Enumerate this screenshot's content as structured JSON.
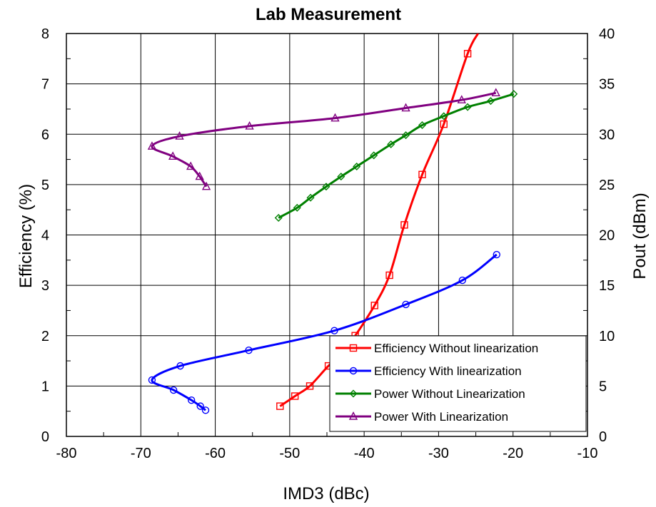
{
  "chart_data": {
    "type": "line",
    "title": "Lab Measurement",
    "xlabel": "IMD3 (dBc)",
    "ylabel": "Efficiency (%)",
    "y2label": "Pout (dBm)",
    "xlim": [
      -80,
      -10
    ],
    "ylim": [
      0,
      8
    ],
    "y2lim": [
      0,
      40
    ],
    "x_ticks": [
      -80,
      -70,
      -60,
      -50,
      -40,
      -30,
      -20,
      -10
    ],
    "y_ticks": [
      0,
      1,
      2,
      3,
      4,
      5,
      6,
      7,
      8
    ],
    "y2_ticks": [
      0,
      5,
      10,
      15,
      20,
      25,
      30,
      35,
      40
    ],
    "grid": true,
    "legend_position": "bottom-right",
    "series": [
      {
        "name": "Efficiency Without linearization",
        "axis": "left",
        "color": "#ff0000",
        "marker": "square",
        "x": [
          -51.3,
          -49.3,
          -47.3,
          -44.8,
          -43.2,
          -41.2,
          -38.6,
          -36.6,
          -34.6,
          -32.2,
          -29.3,
          -26.1
        ],
        "y": [
          0.6,
          0.8,
          1.0,
          1.4,
          1.6,
          2.0,
          2.6,
          3.2,
          4.2,
          5.2,
          6.2,
          7.6
        ],
        "line_x": [
          -51.3,
          -49.3,
          -47.3,
          -44.8,
          -43.2,
          -41.2,
          -38.6,
          -36.6,
          -34.6,
          -32.2,
          -29.3,
          -26.1,
          -24.7
        ],
        "line_y": [
          0.6,
          0.8,
          1.0,
          1.4,
          1.6,
          2.0,
          2.6,
          3.2,
          4.2,
          5.2,
          6.2,
          7.6,
          8.0
        ]
      },
      {
        "name": "Efficiency With linearization",
        "axis": "left",
        "color": "#0000ff",
        "marker": "circle",
        "x": [
          -61.3,
          -62.0,
          -63.2,
          -65.6,
          -68.5,
          -64.7,
          -55.5,
          -44.0,
          -34.4,
          -26.8,
          -22.2
        ],
        "y": [
          0.52,
          0.6,
          0.72,
          0.92,
          1.12,
          1.4,
          1.71,
          2.1,
          2.62,
          3.1,
          3.61
        ]
      },
      {
        "name": "Power Without Linearization",
        "axis": "right",
        "color": "#008000",
        "marker": "diamond",
        "x": [
          -51.5,
          -49.0,
          -47.2,
          -45.1,
          -43.1,
          -41.0,
          -38.7,
          -36.4,
          -34.4,
          -32.2,
          -29.3,
          -26.1,
          -23.0,
          -19.9
        ],
        "y": [
          21.7,
          22.7,
          23.7,
          24.8,
          25.8,
          26.8,
          27.9,
          29.0,
          29.9,
          30.9,
          31.8,
          32.7,
          33.3,
          34.0
        ]
      },
      {
        "name": "Power With Linearization",
        "axis": "right",
        "color": "#800080",
        "marker": "triangle",
        "x": [
          -61.2,
          -62.1,
          -63.3,
          -65.7,
          -68.5,
          -64.8,
          -55.4,
          -43.9,
          -34.4,
          -26.9,
          -22.3
        ],
        "y": [
          24.8,
          25.8,
          26.8,
          27.8,
          28.8,
          29.8,
          30.8,
          31.6,
          32.6,
          33.4,
          34.1
        ]
      }
    ]
  }
}
